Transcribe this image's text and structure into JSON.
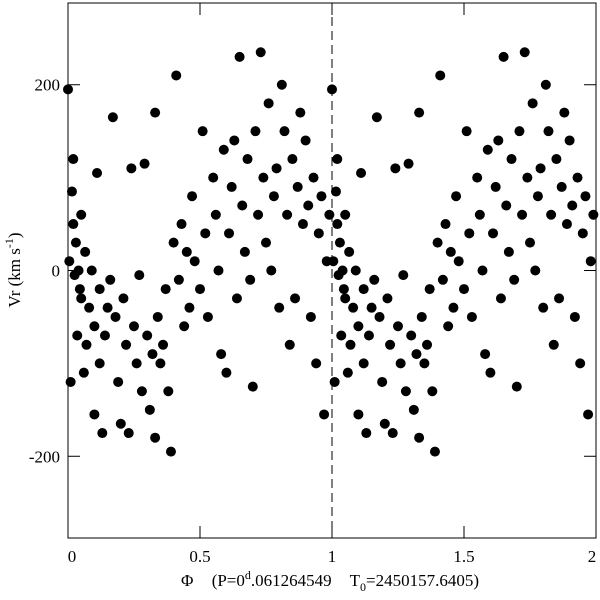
{
  "chart_data": {
    "type": "scatter",
    "xlabel": [
      "Φ",
      "(P=0",
      "d",
      ".061264549",
      "T",
      "0",
      "=2450157.6405)"
    ],
    "ylabel": [
      "Vr (km s",
      "-1",
      ")"
    ],
    "color": "#000000",
    "xlim": [
      0,
      2
    ],
    "ylim": [
      -288,
      288
    ],
    "xticks": [
      0,
      0.5,
      1,
      1.5,
      2
    ],
    "yticks": [
      -200,
      0,
      200
    ],
    "vlines": [
      1
    ],
    "x": [
      0,
      0.005,
      0.01,
      0.015,
      0.02,
      0.02,
      0.025,
      0.03,
      0.035,
      0.04,
      0.045,
      0.05,
      0.05,
      0.06,
      0.065,
      0.07,
      0.08,
      0.09,
      0.1,
      0.1,
      0.11,
      0.12,
      0.12,
      0.13,
      0.14,
      0.15,
      0.16,
      0.17,
      0.18,
      0.19,
      0.2,
      0.21,
      0.22,
      0.23,
      0.24,
      0.25,
      0.26,
      0.27,
      0.28,
      0.29,
      0.3,
      0.31,
      0.32,
      0.33,
      0.33,
      0.34,
      0.35,
      0.36,
      0.37,
      0.38,
      0.39,
      0.4,
      0.41,
      0.42,
      0.43,
      0.44,
      0.45,
      0.46,
      0.47,
      0.48,
      0.5,
      0.51,
      0.52,
      0.53,
      0.55,
      0.56,
      0.57,
      0.58,
      0.59,
      0.6,
      0.61,
      0.62,
      0.63,
      0.64,
      0.65,
      0.66,
      0.67,
      0.68,
      0.69,
      0.7,
      0.71,
      0.72,
      0.73,
      0.74,
      0.75,
      0.76,
      0.77,
      0.78,
      0.79,
      0.8,
      0.81,
      0.82,
      0.83,
      0.84,
      0.85,
      0.86,
      0.87,
      0.88,
      0.89,
      0.9,
      0.91,
      0.92,
      0.93,
      0.94,
      0.95,
      0.96,
      0.97,
      0.98,
      0.99,
      1,
      1.005,
      1.01,
      1.015,
      1.02,
      1.02,
      1.025,
      1.03,
      1.035,
      1.04,
      1.045,
      1.05,
      1.05,
      1.06,
      1.065,
      1.07,
      1.08,
      1.09,
      1.1,
      1.1,
      1.11,
      1.12,
      1.12,
      1.13,
      1.14,
      1.15,
      1.16,
      1.17,
      1.18,
      1.19,
      1.2,
      1.21,
      1.22,
      1.23,
      1.24,
      1.25,
      1.26,
      1.27,
      1.28,
      1.29,
      1.3,
      1.31,
      1.32,
      1.33,
      1.33,
      1.34,
      1.35,
      1.36,
      1.37,
      1.38,
      1.39,
      1.4,
      1.41,
      1.42,
      1.43,
      1.44,
      1.45,
      1.46,
      1.47,
      1.48,
      1.5,
      1.51,
      1.52,
      1.53,
      1.55,
      1.56,
      1.57,
      1.58,
      1.59,
      1.6,
      1.61,
      1.62,
      1.63,
      1.64,
      1.65,
      1.66,
      1.67,
      1.68,
      1.69,
      1.7,
      1.71,
      1.72,
      1.73,
      1.74,
      1.75,
      1.76,
      1.77,
      1.78,
      1.79,
      1.8,
      1.81,
      1.82,
      1.83,
      1.84,
      1.85,
      1.86,
      1.87,
      1.88,
      1.89,
      1.9,
      1.91,
      1.92,
      1.93,
      1.94,
      1.95,
      1.96,
      1.97,
      1.98,
      1.99
    ],
    "values": [
      195,
      10,
      -120,
      85,
      120,
      50,
      -5,
      30,
      -70,
      0,
      -20,
      60,
      -30,
      -110,
      20,
      -80,
      -40,
      0,
      -60,
      -155,
      105,
      -100,
      -20,
      -175,
      -70,
      -40,
      -10,
      165,
      -50,
      -120,
      -165,
      -30,
      -80,
      -175,
      110,
      -60,
      -100,
      -5,
      -130,
      115,
      -70,
      -150,
      -90,
      170,
      -180,
      -50,
      -100,
      -80,
      -20,
      -130,
      -195,
      30,
      210,
      -10,
      50,
      -60,
      20,
      -40,
      80,
      10,
      -20,
      150,
      40,
      -50,
      100,
      60,
      0,
      -90,
      130,
      -110,
      40,
      90,
      140,
      -30,
      230,
      70,
      20,
      120,
      -10,
      -125,
      150,
      60,
      235,
      100,
      30,
      180,
      0,
      80,
      110,
      -40,
      200,
      150,
      60,
      -80,
      120,
      -30,
      90,
      170,
      50,
      140,
      70,
      -50,
      100,
      -100,
      40,
      80,
      -155,
      10,
      60,
      195,
      10,
      -120,
      85,
      120,
      50,
      -5,
      30,
      -70,
      0,
      -20,
      60,
      -30,
      -110,
      20,
      -80,
      -40,
      0,
      -60,
      -155,
      105,
      -100,
      -20,
      -175,
      -70,
      -40,
      -10,
      165,
      -50,
      -120,
      -165,
      -30,
      -80,
      -175,
      110,
      -60,
      -100,
      -5,
      -130,
      115,
      -70,
      -150,
      -90,
      170,
      -180,
      -50,
      -100,
      -80,
      -20,
      -130,
      -195,
      30,
      210,
      -10,
      50,
      -60,
      20,
      -40,
      80,
      10,
      -20,
      150,
      40,
      -50,
      100,
      60,
      0,
      -90,
      130,
      -110,
      40,
      90,
      140,
      -30,
      230,
      70,
      20,
      120,
      -10,
      -125,
      150,
      60,
      235,
      100,
      30,
      180,
      0,
      80,
      110,
      -40,
      200,
      150,
      60,
      -80,
      120,
      -30,
      90,
      170,
      50,
      140,
      70,
      -50,
      100,
      -100,
      40,
      80,
      -155,
      10,
      60
    ]
  }
}
